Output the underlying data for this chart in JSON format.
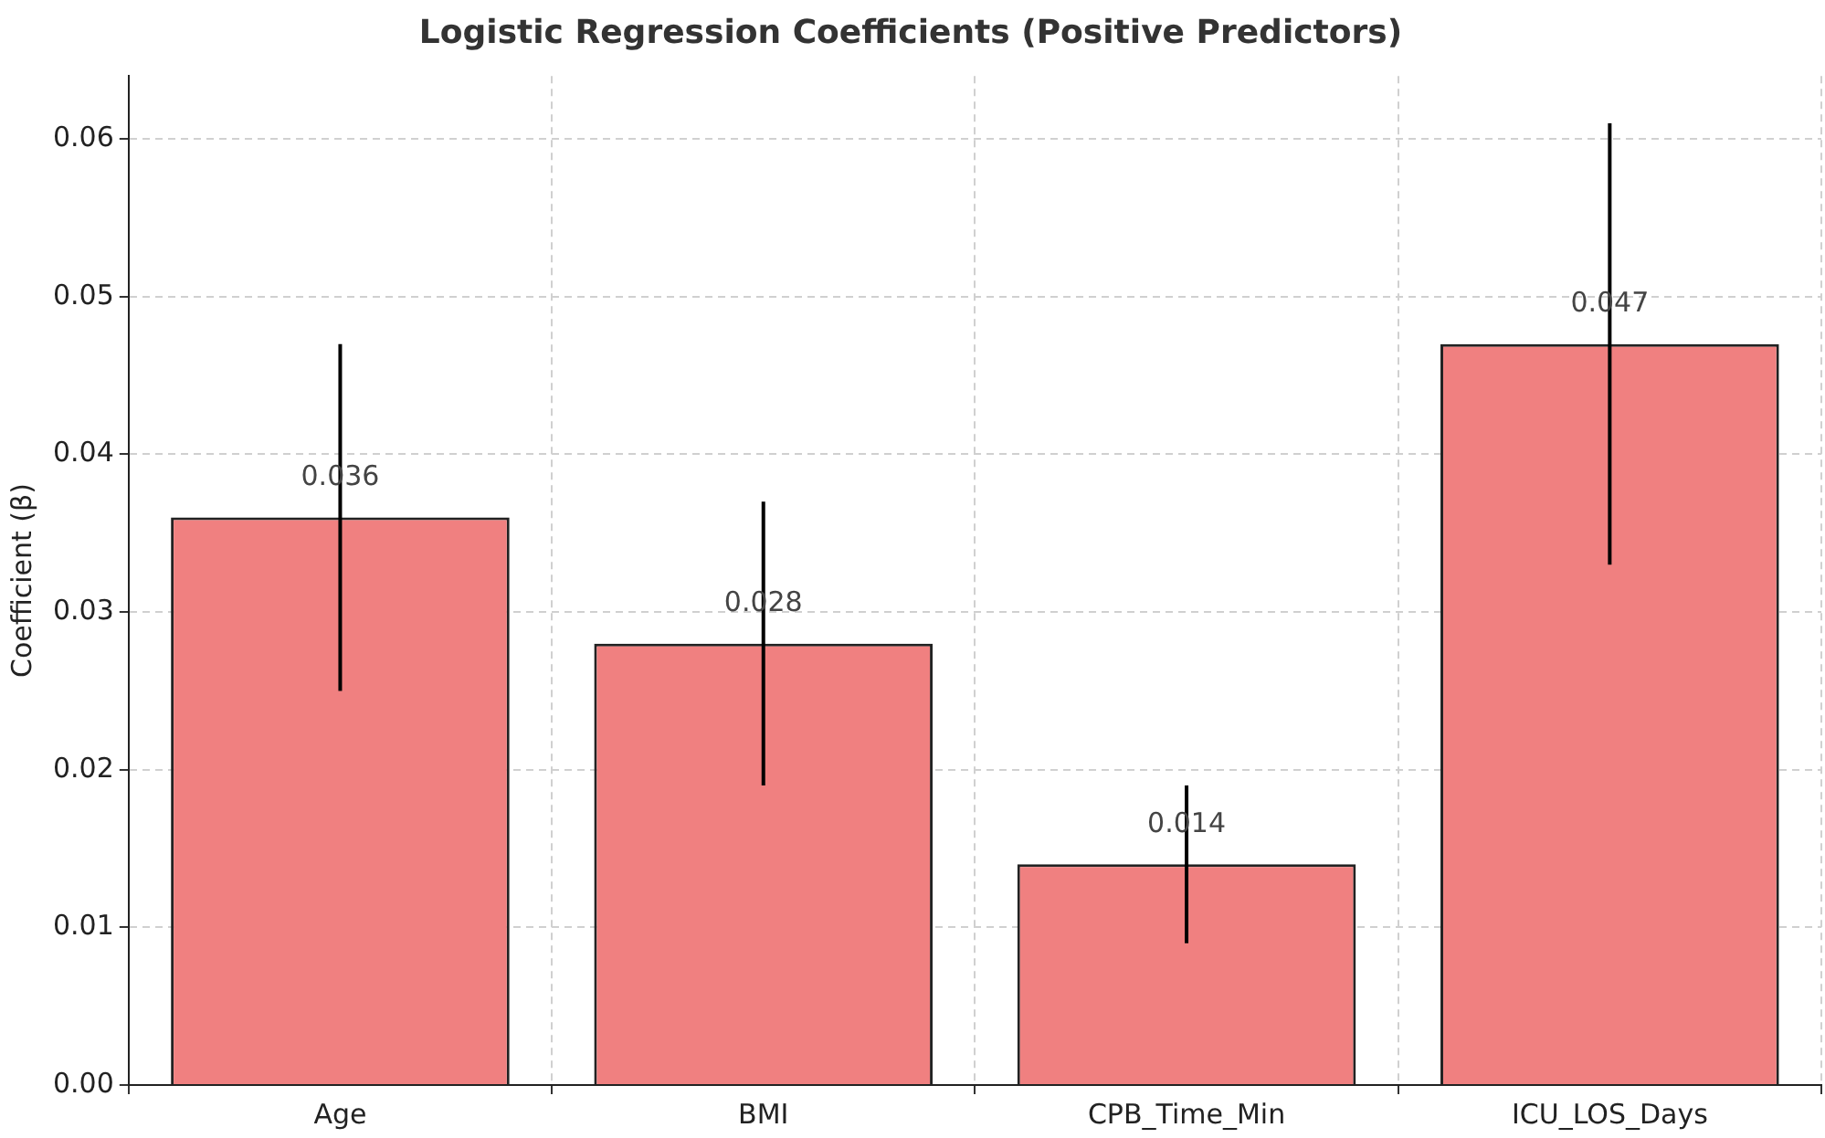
{
  "chart_data": {
    "type": "bar",
    "title": "Logistic Regression Coefficients (Positive Predictors)",
    "ylabel": "Coefficient (β)",
    "categories": [
      "Age",
      "BMI",
      "CPB_Time_Min",
      "ICU_LOS_Days"
    ],
    "values": [
      0.036,
      0.028,
      0.014,
      0.047
    ],
    "errors": [
      0.011,
      0.009,
      0.005,
      0.014
    ],
    "color": "#f08080",
    "ylim": [
      0,
      0.064
    ],
    "yticks": [
      {
        "value": 0,
        "label": "0.00"
      },
      {
        "value": 0.01,
        "label": "0.01"
      },
      {
        "value": 0.02,
        "label": "0.02"
      },
      {
        "value": 0.03,
        "label": "0.03"
      },
      {
        "value": 0.04,
        "label": "0.04"
      },
      {
        "value": 0.05,
        "label": "0.05"
      },
      {
        "value": 0.06,
        "label": "0.06"
      }
    ],
    "grid": true,
    "data_labels": true
  }
}
